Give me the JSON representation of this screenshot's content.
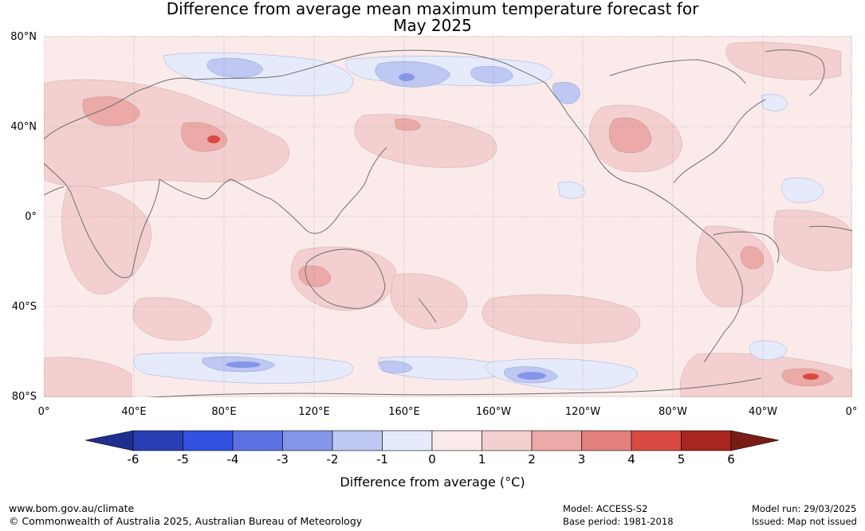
{
  "title": {
    "line1": "Difference from average mean maximum temperature forecast for",
    "line2": "May 2025"
  },
  "axes": {
    "lat_labels": [
      "80°N",
      "40°N",
      "0°",
      "40°S",
      "80°S"
    ],
    "lon_labels": [
      "0°",
      "40°E",
      "80°E",
      "120°E",
      "160°E",
      "160°W",
      "120°W",
      "80°W",
      "40°W",
      "0°"
    ]
  },
  "colorbar": {
    "ticks": [
      "-6",
      "-5",
      "-4",
      "-3",
      "-2",
      "-1",
      "0",
      "1",
      "2",
      "3",
      "4",
      "5",
      "6"
    ],
    "colors": [
      "#1f2f8f",
      "#2a3eb3",
      "#3152e0",
      "#5b72e3",
      "#8596ea",
      "#bfc8f3",
      "#e6ebfb",
      "#fbeaea",
      "#f3d0cf",
      "#ebaaa7",
      "#e2807b",
      "#d84a42",
      "#a8261f",
      "#7a1b16"
    ],
    "label": "Difference from average (°C)"
  },
  "map_colors": {
    "background": "#fbeaea",
    "warm_light": "#f3d0cf",
    "warm_medium": "#ebaaa7",
    "warm_strong": "#d84a42",
    "cool_light": "#e6ebfb",
    "cool_medium": "#bfc8f3",
    "cool_strong": "#8596ea",
    "coastline": "#6e6e6e",
    "grid": "#8a8a8a"
  },
  "footer": {
    "website": "www.bom.gov.au/climate",
    "copyright": "© Commonwealth of Australia 2025, Australian Bureau of Meteorology",
    "model": "Model: ACCESS-S2",
    "base_period": "Base period: 1981-2018",
    "model_run": "Model run: 29/03/2025",
    "issued": "Issued: Map not issued"
  }
}
